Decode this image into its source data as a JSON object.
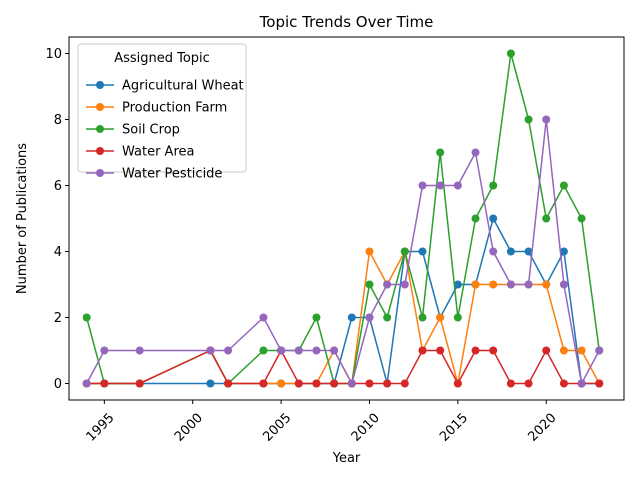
{
  "chart_data": {
    "type": "line",
    "title": "Topic Trends Over Time",
    "xlabel": "Year",
    "ylabel": "Number of Publications",
    "xlim": [
      1993,
      2024.4
    ],
    "ylim": [
      -0.5,
      10.5
    ],
    "x_ticks": [
      1995,
      2000,
      2005,
      2010,
      2015,
      2020
    ],
    "y_ticks": [
      0,
      2,
      4,
      6,
      8,
      10
    ],
    "grid": false,
    "legend": {
      "title": "Assigned Topic",
      "placement": "top-left"
    },
    "series": [
      {
        "name": "Agricultural Wheat",
        "color": "#1f77b4",
        "x": [
          1994,
          1995,
          1997,
          2001,
          2002,
          2004,
          2005,
          2006,
          2007,
          2008,
          2009,
          2010,
          2011,
          2012,
          2013,
          2014,
          2015,
          2016,
          2017,
          2018,
          2019,
          2020,
          2021,
          2022,
          2023
        ],
        "y": [
          0,
          0,
          0,
          0,
          0,
          0,
          0,
          0,
          0,
          0,
          2,
          2,
          0,
          4,
          4,
          2,
          3,
          3,
          5,
          4,
          4,
          3,
          4,
          0,
          0
        ]
      },
      {
        "name": "Production Farm",
        "color": "#ff7f0e",
        "x": [
          1994,
          1995,
          1997,
          2001,
          2002,
          2004,
          2005,
          2006,
          2007,
          2008,
          2009,
          2010,
          2011,
          2012,
          2013,
          2014,
          2015,
          2016,
          2017,
          2018,
          2019,
          2020,
          2021,
          2022,
          2023
        ],
        "y": [
          0,
          0,
          0,
          1,
          0,
          0,
          0,
          0,
          0,
          1,
          0,
          4,
          3,
          4,
          1,
          2,
          0,
          3,
          3,
          3,
          3,
          3,
          1,
          1,
          0
        ]
      },
      {
        "name": "Soil Crop",
        "color": "#2ca02c",
        "x": [
          1994,
          1995,
          1997,
          2001,
          2002,
          2004,
          2005,
          2006,
          2007,
          2008,
          2009,
          2010,
          2011,
          2012,
          2013,
          2014,
          2015,
          2016,
          2017,
          2018,
          2019,
          2020,
          2021,
          2022,
          2023
        ],
        "y": [
          2,
          0,
          0,
          1,
          0,
          1,
          1,
          1,
          2,
          0,
          0,
          3,
          2,
          4,
          2,
          7,
          2,
          5,
          6,
          10,
          8,
          5,
          6,
          5,
          1
        ]
      },
      {
        "name": "Water Area",
        "color": "#d62728",
        "x": [
          1994,
          1995,
          1997,
          2001,
          2002,
          2004,
          2005,
          2006,
          2007,
          2008,
          2009,
          2010,
          2011,
          2012,
          2013,
          2014,
          2015,
          2016,
          2017,
          2018,
          2019,
          2020,
          2021,
          2022,
          2023
        ],
        "y": [
          0,
          0,
          0,
          1,
          0,
          0,
          1,
          0,
          0,
          0,
          0,
          0,
          0,
          0,
          1,
          1,
          0,
          1,
          1,
          0,
          0,
          1,
          0,
          0,
          0
        ]
      },
      {
        "name": "Water Pesticide",
        "color": "#9467bd",
        "x": [
          1994,
          1995,
          1997,
          2001,
          2002,
          2004,
          2005,
          2006,
          2007,
          2008,
          2009,
          2010,
          2011,
          2012,
          2013,
          2014,
          2015,
          2016,
          2017,
          2018,
          2019,
          2020,
          2021,
          2022,
          2023
        ],
        "y": [
          0,
          1,
          1,
          1,
          1,
          2,
          1,
          1,
          1,
          1,
          0,
          2,
          3,
          3,
          6,
          6,
          6,
          7,
          4,
          3,
          3,
          8,
          3,
          0,
          1
        ]
      }
    ]
  }
}
